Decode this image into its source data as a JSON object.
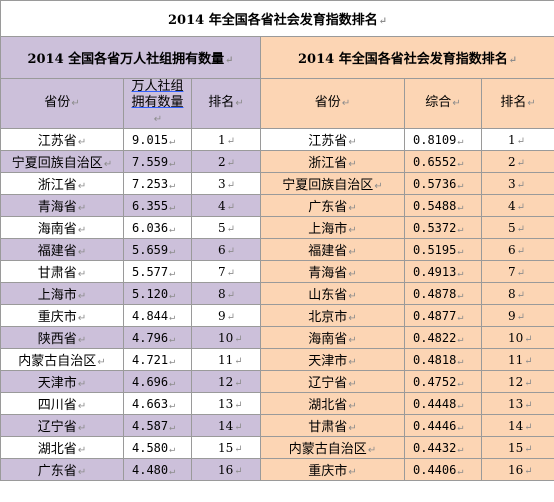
{
  "main_title": "2014 年全国各省社会发育指数排名",
  "left": {
    "heading": "2014 全国各省万人社组拥有数量",
    "col_province": "省份",
    "col_count": "万人社组拥有数量",
    "col_rank": "排名",
    "rows": [
      {
        "province": "江苏省",
        "value": "9.015",
        "rank": "1"
      },
      {
        "province": "宁夏回族自治区",
        "value": "7.559",
        "rank": "2"
      },
      {
        "province": "浙江省",
        "value": "7.253",
        "rank": "3"
      },
      {
        "province": "青海省",
        "value": "6.355",
        "rank": "4"
      },
      {
        "province": "海南省",
        "value": "6.036",
        "rank": "5"
      },
      {
        "province": "福建省",
        "value": "5.659",
        "rank": "6"
      },
      {
        "province": "甘肃省",
        "value": "5.577",
        "rank": "7"
      },
      {
        "province": "上海市",
        "value": "5.120",
        "rank": "8"
      },
      {
        "province": "重庆市",
        "value": "4.844",
        "rank": "9"
      },
      {
        "province": "陕西省",
        "value": "4.796",
        "rank": "10"
      },
      {
        "province": "内蒙古自治区",
        "value": "4.721",
        "rank": "11"
      },
      {
        "province": "天津市",
        "value": "4.696",
        "rank": "12"
      },
      {
        "province": "四川省",
        "value": "4.663",
        "rank": "13"
      },
      {
        "province": "辽宁省",
        "value": "4.587",
        "rank": "14"
      },
      {
        "province": "湖北省",
        "value": "4.580",
        "rank": "15"
      },
      {
        "province": "广东省",
        "value": "4.480",
        "rank": "16"
      }
    ]
  },
  "right": {
    "heading": "2014 年全国各省社会发育指数排名",
    "col_province": "省份",
    "col_score": "综合",
    "col_rank": "排名",
    "rows": [
      {
        "province": "江苏省",
        "value": "0.8109",
        "rank": "1"
      },
      {
        "province": "浙江省",
        "value": "0.6552",
        "rank": "2"
      },
      {
        "province": "宁夏回族自治区",
        "value": "0.5736",
        "rank": "3"
      },
      {
        "province": "广东省",
        "value": "0.5488",
        "rank": "4"
      },
      {
        "province": "上海市",
        "value": "0.5372",
        "rank": "5"
      },
      {
        "province": "福建省",
        "value": "0.5195",
        "rank": "6"
      },
      {
        "province": "青海省",
        "value": "0.4913",
        "rank": "7"
      },
      {
        "province": "山东省",
        "value": "0.4878",
        "rank": "8"
      },
      {
        "province": "北京市",
        "value": "0.4877",
        "rank": "9"
      },
      {
        "province": "海南省",
        "value": "0.4822",
        "rank": "10"
      },
      {
        "province": "天津市",
        "value": "0.4818",
        "rank": "11"
      },
      {
        "province": "辽宁省",
        "value": "0.4752",
        "rank": "12"
      },
      {
        "province": "湖北省",
        "value": "0.4448",
        "rank": "13"
      },
      {
        "province": "甘肃省",
        "value": "0.4446",
        "rank": "14"
      },
      {
        "province": "内蒙古自治区",
        "value": "0.4432",
        "rank": "15"
      },
      {
        "province": "重庆市",
        "value": "0.4406",
        "rank": "16"
      }
    ]
  },
  "cell_mark": "↵"
}
